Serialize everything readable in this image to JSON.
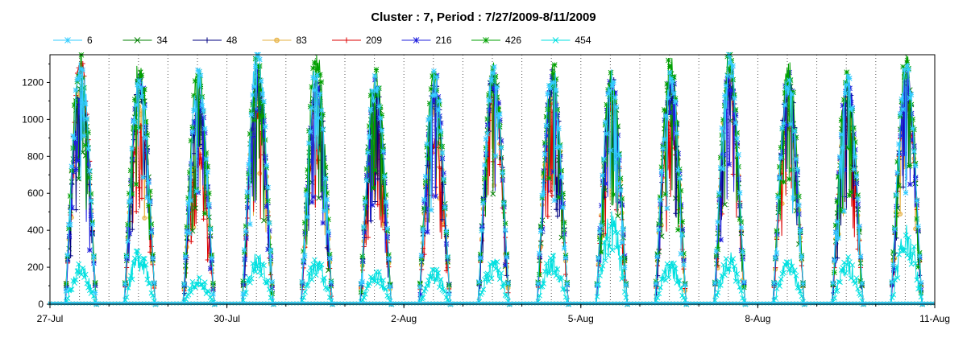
{
  "chart_data": {
    "type": "line",
    "title": "Cluster : 7, Period : 7/27/2009-8/11/2009",
    "xlabel": "",
    "ylabel": "",
    "x_range_days": [
      0,
      15
    ],
    "ylim": [
      0,
      1350
    ],
    "x_ticks": [
      {
        "day": 0,
        "label": "27-Jul"
      },
      {
        "day": 3,
        "label": "30-Jul"
      },
      {
        "day": 6,
        "label": "2-Aug"
      },
      {
        "day": 9,
        "label": "5-Aug"
      },
      {
        "day": 12,
        "label": "8-Aug"
      },
      {
        "day": 15,
        "label": "11-Aug"
      }
    ],
    "y_ticks": [
      0,
      200,
      400,
      600,
      800,
      1000,
      1200
    ],
    "grid": {
      "vertical_dotted": true,
      "horizontal": false
    },
    "legend": {
      "position": "top"
    },
    "series": [
      {
        "name": "6",
        "color": "#33ccff",
        "marker": "asterisk",
        "daily_peak": [
          1300,
          1200,
          1200,
          1340,
          1250,
          1200,
          1200,
          1250,
          1250,
          1200,
          1200,
          1330,
          1200,
          1200,
          1260
        ]
      },
      {
        "name": "34",
        "color": "#008000",
        "marker": "x",
        "daily_peak": [
          1180,
          1200,
          1050,
          1200,
          1150,
          1180,
          1150,
          1220,
          1200,
          1150,
          1200,
          1200,
          1150,
          1150,
          1200
        ]
      },
      {
        "name": "48",
        "color": "#000080",
        "marker": "plus",
        "daily_peak": [
          1150,
          1180,
          1100,
          1180,
          1200,
          1150,
          1150,
          1220,
          1200,
          1180,
          1150,
          1200,
          1200,
          1150,
          1200
        ]
      },
      {
        "name": "83",
        "color": "#e6b040",
        "marker": "circle",
        "daily_peak": [
          1100,
          1050,
          950,
          1150,
          1100,
          1000,
          1050,
          1150,
          1150,
          1100,
          1150,
          1200,
          1100,
          1100,
          1150
        ]
      },
      {
        "name": "209",
        "color": "#dd0000",
        "marker": "plus",
        "daily_peak": [
          1280,
          1000,
          800,
          1050,
          900,
          950,
          900,
          1100,
          1050,
          1050,
          950,
          1200,
          1000,
          1000,
          1100
        ]
      },
      {
        "name": "216",
        "color": "#2020dd",
        "marker": "asterisk",
        "daily_peak": [
          1100,
          1200,
          1150,
          1200,
          1150,
          1150,
          1200,
          1220,
          1200,
          1200,
          1230,
          1230,
          1200,
          1200,
          1200
        ]
      },
      {
        "name": "426",
        "color": "#00a000",
        "marker": "asterisk",
        "daily_peak": [
          1300,
          1280,
          1250,
          1300,
          1330,
          1230,
          1200,
          1250,
          1260,
          1200,
          1280,
          1300,
          1250,
          1230,
          1310
        ]
      },
      {
        "name": "454",
        "color": "#00e0e0",
        "marker": "x",
        "daily_peak": [
          180,
          250,
          120,
          220,
          200,
          150,
          150,
          200,
          220,
          400,
          200,
          220,
          200,
          200,
          350
        ]
      }
    ]
  }
}
